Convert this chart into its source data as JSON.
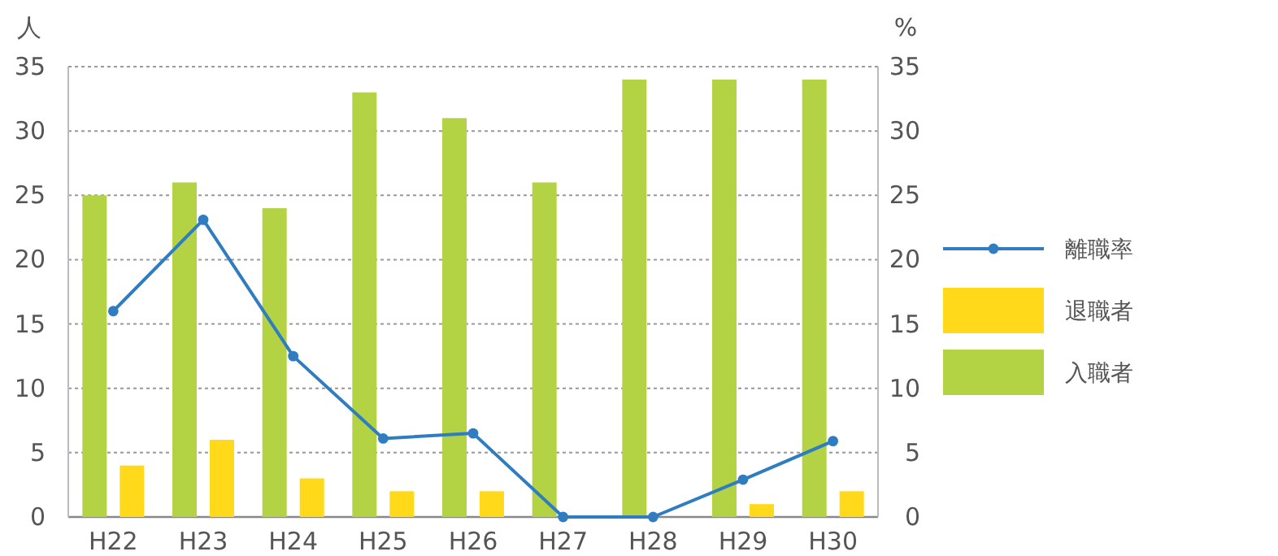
{
  "chart_data": {
    "type": "bar",
    "ylabel": "人",
    "y2label": "%",
    "categories": [
      "H22",
      "H23",
      "H24",
      "H25",
      "H26",
      "H27",
      "H28",
      "H29",
      "H30"
    ],
    "series": [
      {
        "name": "入職者",
        "color": "#b3d344",
        "values": [
          25,
          26,
          24,
          33,
          31,
          26,
          34,
          34,
          34
        ]
      },
      {
        "name": "退職者",
        "color": "#ffd91a",
        "values": [
          4,
          6,
          3,
          2,
          2,
          0,
          0,
          1,
          2
        ]
      },
      {
        "name": "離職率",
        "type": "line",
        "axis": "y2",
        "color": "#2f7dc0",
        "values": [
          16.0,
          23.1,
          12.5,
          6.1,
          6.5,
          0,
          0,
          2.9,
          5.9
        ]
      }
    ],
    "ylim": [
      0,
      35
    ],
    "yticks": [
      0,
      5,
      10,
      15,
      20,
      25,
      30,
      35
    ],
    "y2lim": [
      0,
      35
    ],
    "y2ticks": [
      0,
      5,
      10,
      15,
      20,
      25,
      30,
      35
    ],
    "grid": "y",
    "legend": "right",
    "marker": "circle",
    "line_style": "solid"
  }
}
